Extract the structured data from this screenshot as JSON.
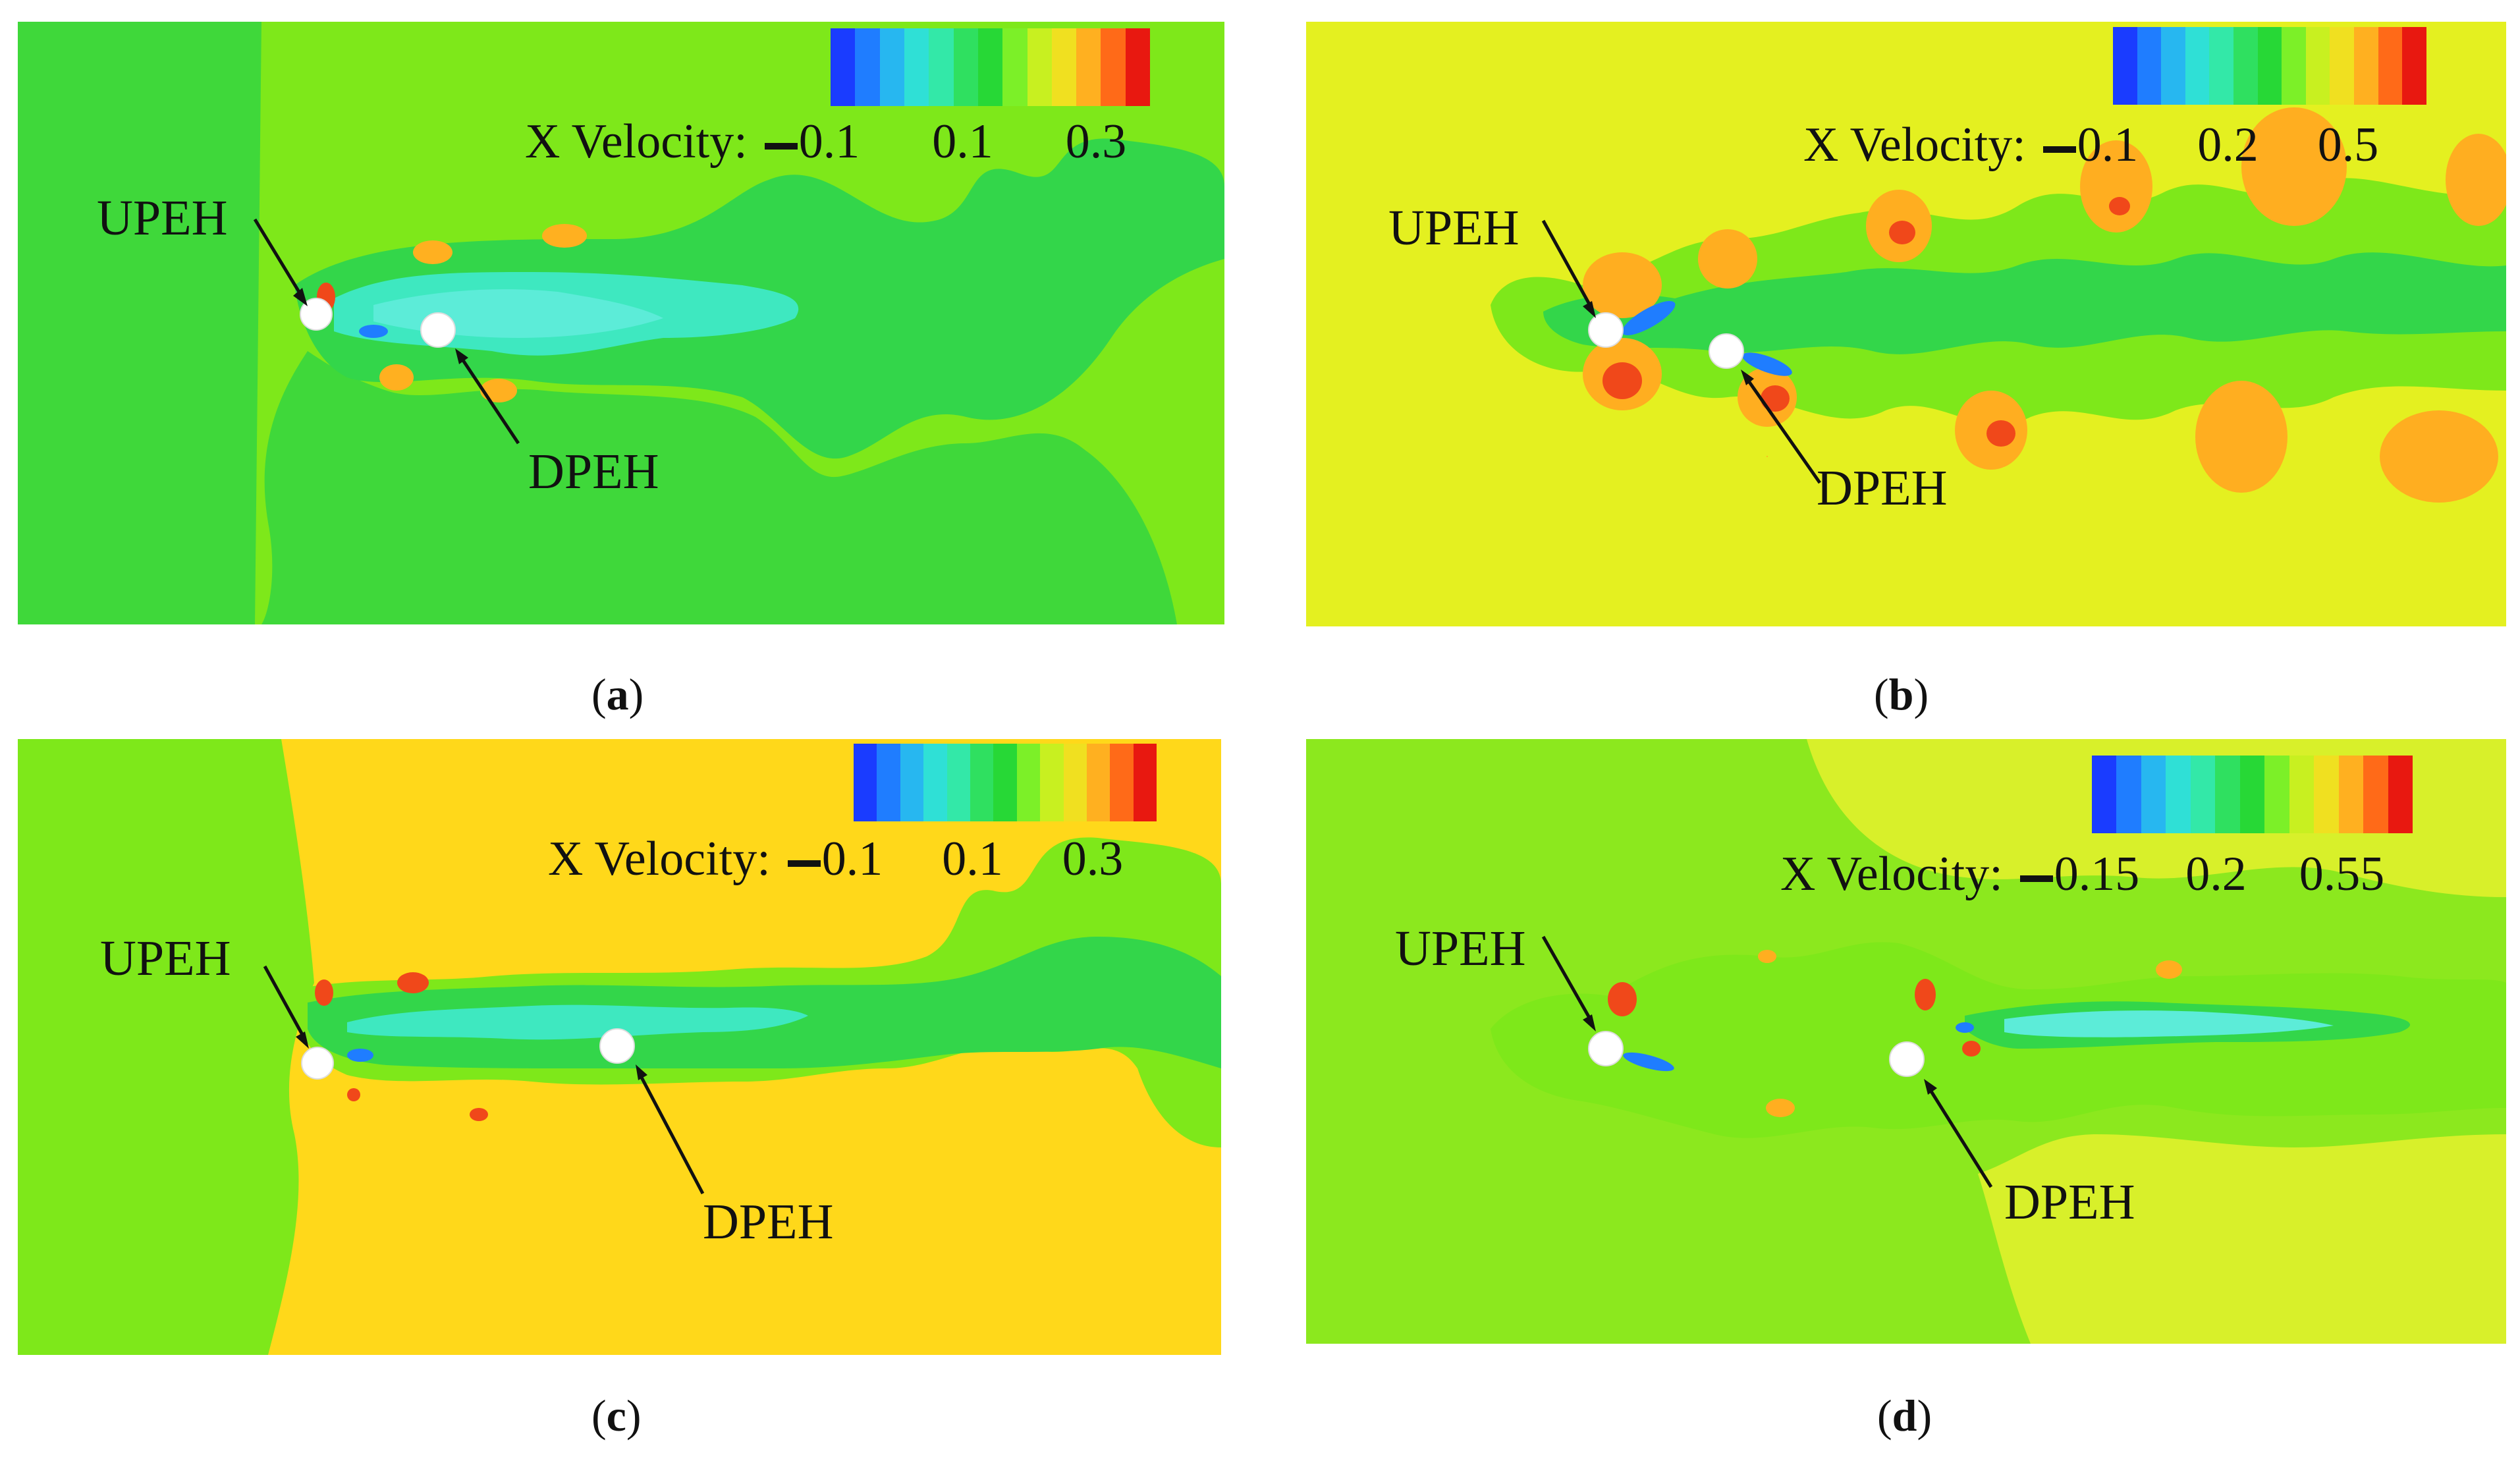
{
  "panels": [
    {
      "caption_letter": "a",
      "colorbar_title": "X Velocity:",
      "colorbar_ticks": [
        "0.1",
        "0.1",
        "0.3"
      ],
      "upstream_label": "UPEH",
      "downstream_label": "DPEH"
    },
    {
      "caption_letter": "b",
      "colorbar_title": "X Velocity:",
      "colorbar_ticks": [
        "0.1",
        "0.2",
        "0.5"
      ],
      "upstream_label": "UPEH",
      "downstream_label": "DPEH"
    },
    {
      "caption_letter": "c",
      "colorbar_title": "X Velocity:",
      "colorbar_ticks": [
        "0.1",
        "0.1",
        "0.3"
      ],
      "upstream_label": "UPEH",
      "downstream_label": "DPEH"
    },
    {
      "caption_letter": "d",
      "colorbar_title": "X Velocity:",
      "colorbar_ticks": [
        "0.15",
        "0.2",
        "0.55"
      ],
      "upstream_label": "UPEH",
      "downstream_label": "DPEH"
    }
  ],
  "colors": {
    "colorbar": [
      "#1a3cff",
      "#1f7dff",
      "#27b7f0",
      "#2fe0d6",
      "#33e8a8",
      "#2fe060",
      "#27d836",
      "#7cf028",
      "#c8f020",
      "#f0e020",
      "#ffb020",
      "#ff6a18",
      "#e81810"
    ],
    "background_a": "#7ee81a",
    "background_b": "#e4f020",
    "background_c": "#ffd81a",
    "background_d": "#8ce81e",
    "wake_green": "#33d64a",
    "wake_cyan": "#3ee8d0",
    "vortex_orange": "#ffae20",
    "vortex_red": "#f0481a",
    "cylinder": "#ffffff"
  }
}
